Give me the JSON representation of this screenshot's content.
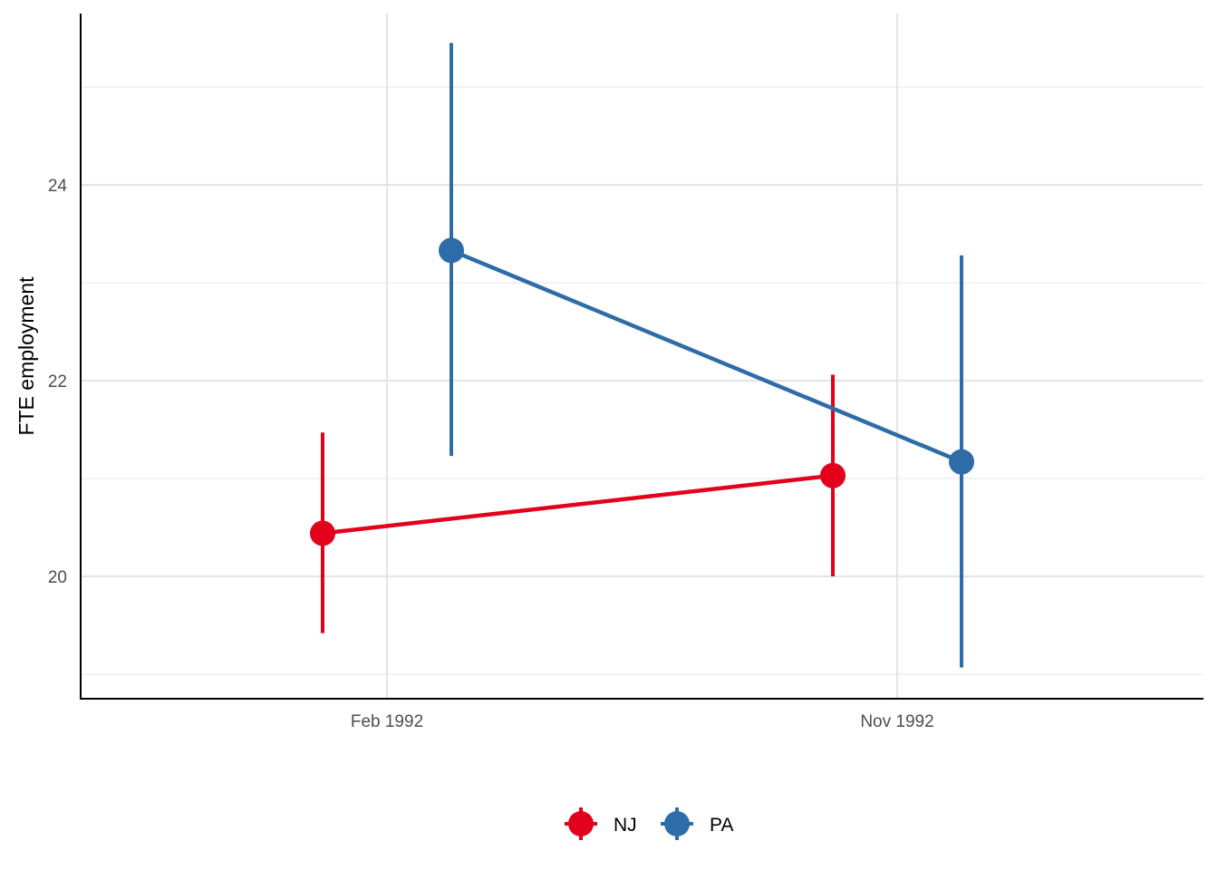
{
  "chart_data": {
    "type": "line",
    "title": "",
    "xlabel": "",
    "ylabel": "FTE employment",
    "x_categories": [
      "Feb 1992",
      "Nov 1992"
    ],
    "y_ticks": [
      20,
      22,
      24
    ],
    "ylim": [
      18.75,
      25.75
    ],
    "grid": true,
    "legend_position": "bottom",
    "series": [
      {
        "name": "NJ",
        "color": "#E3001B",
        "points": [
          {
            "x": "Feb 1992",
            "y": 20.44,
            "ymin": 19.42,
            "ymax": 21.47
          },
          {
            "x": "Nov 1992",
            "y": 21.03,
            "ymin": 20.0,
            "ymax": 22.06
          }
        ]
      },
      {
        "name": "PA",
        "color": "#2D6CA9",
        "points": [
          {
            "x": "Feb 1992",
            "y": 23.33,
            "ymin": 21.23,
            "ymax": 25.45
          },
          {
            "x": "Nov 1992",
            "y": 21.17,
            "ymin": 19.07,
            "ymax": 23.28
          }
        ]
      }
    ]
  }
}
